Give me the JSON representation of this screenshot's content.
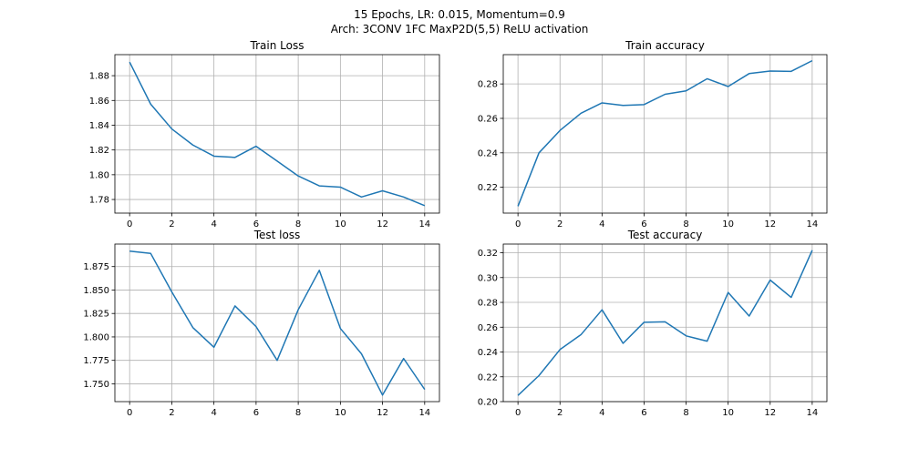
{
  "figure": {
    "title_line1": "15 Epochs, LR: 0.015, Momentum=0.9",
    "title_line2": "Arch: 3CONV 1FC MaxP2D(5,5) ReLU activation"
  },
  "colors": {
    "line": "#1f77b4",
    "grid": "#b0b0b0",
    "axes": "#000000"
  },
  "chart_data": [
    {
      "type": "line",
      "title": "Train Loss",
      "x": [
        0,
        1,
        2,
        3,
        4,
        5,
        6,
        7,
        8,
        9,
        10,
        11,
        12,
        13,
        14
      ],
      "values": [
        1.891,
        1.857,
        1.837,
        1.824,
        1.815,
        1.814,
        1.823,
        1.811,
        1.799,
        1.791,
        1.79,
        1.782,
        1.787,
        1.782,
        1.775
      ],
      "xlim": [
        -0.7,
        14.7
      ],
      "ylim": [
        1.769,
        1.897
      ],
      "xticks": [
        0,
        2,
        4,
        6,
        8,
        10,
        12,
        14
      ],
      "yticks": [
        1.78,
        1.8,
        1.82,
        1.84,
        1.86,
        1.88
      ],
      "ytick_labels": [
        "1.78",
        "1.80",
        "1.82",
        "1.84",
        "1.86",
        "1.88"
      ],
      "grid": true
    },
    {
      "type": "line",
      "title": "Train accuracy",
      "x": [
        0,
        1,
        2,
        3,
        4,
        5,
        6,
        7,
        8,
        9,
        10,
        11,
        12,
        13,
        14
      ],
      "values": [
        0.209,
        0.24,
        0.253,
        0.263,
        0.269,
        0.2675,
        0.268,
        0.274,
        0.276,
        0.283,
        0.2785,
        0.286,
        0.2875,
        0.2873,
        0.2935
      ],
      "xlim": [
        -0.7,
        14.7
      ],
      "ylim": [
        0.205,
        0.297
      ],
      "xticks": [
        0,
        2,
        4,
        6,
        8,
        10,
        12,
        14
      ],
      "yticks": [
        0.22,
        0.24,
        0.26,
        0.28
      ],
      "ytick_labels": [
        "0.22",
        "0.24",
        "0.26",
        "0.28"
      ],
      "grid": true
    },
    {
      "type": "line",
      "title": "Test loss",
      "x": [
        0,
        1,
        2,
        3,
        4,
        5,
        6,
        7,
        8,
        9,
        10,
        11,
        12,
        13,
        14
      ],
      "values": [
        1.8915,
        1.889,
        1.848,
        1.81,
        1.789,
        1.833,
        1.811,
        1.775,
        1.829,
        1.871,
        1.809,
        1.782,
        1.738,
        1.777,
        1.744
      ],
      "xlim": [
        -0.7,
        14.7
      ],
      "ylim": [
        1.731,
        1.899
      ],
      "xticks": [
        0,
        2,
        4,
        6,
        8,
        10,
        12,
        14
      ],
      "yticks": [
        1.75,
        1.775,
        1.8,
        1.825,
        1.85,
        1.875
      ],
      "ytick_labels": [
        "1.750",
        "1.775",
        "1.800",
        "1.825",
        "1.850",
        "1.875"
      ],
      "grid": true
    },
    {
      "type": "line",
      "title": "Test accuracy",
      "x": [
        0,
        1,
        2,
        3,
        4,
        5,
        6,
        7,
        8,
        9,
        10,
        11,
        12,
        13,
        14
      ],
      "values": [
        0.205,
        0.221,
        0.242,
        0.254,
        0.274,
        0.247,
        0.264,
        0.2643,
        0.253,
        0.2487,
        0.288,
        0.269,
        0.298,
        0.284,
        0.322
      ],
      "xlim": [
        -0.7,
        14.7
      ],
      "ylim": [
        0.2,
        0.327
      ],
      "xticks": [
        0,
        2,
        4,
        6,
        8,
        10,
        12,
        14
      ],
      "yticks": [
        0.2,
        0.22,
        0.24,
        0.26,
        0.28,
        0.3,
        0.32
      ],
      "ytick_labels": [
        "0.20",
        "0.22",
        "0.24",
        "0.26",
        "0.28",
        "0.30",
        "0.32"
      ],
      "grid": true
    }
  ]
}
